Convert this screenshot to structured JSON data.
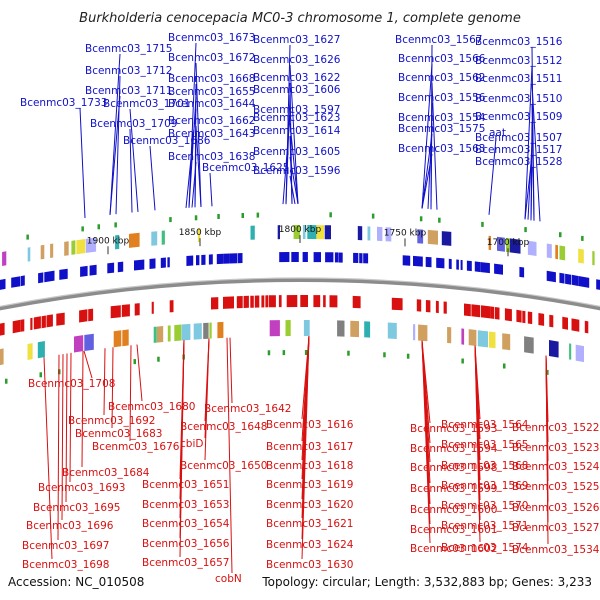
{
  "title": "Burkholderia cenocepacia MC0-3 chromosome 1, complete genome",
  "footer": {
    "accession": "Accession: NC_010508",
    "summary": "Topology: circular; Length: 3,532,883 bp; Genes: 3,233"
  },
  "colors": {
    "forward": "#1010c8",
    "reverse": "#d81010",
    "backbone": "#8c8c8c",
    "gc": "#2a9d2a"
  },
  "ticks": [
    "1900 kbp",
    "1850 kbp",
    "1800 kbp",
    "1750 kbp",
    "1700 kbp"
  ],
  "top_labels": [
    "Bcenmc03_1715",
    "Bcenmc03_1673",
    "Bcenmc03_1627",
    "Bcenmc03_1567",
    "Bcenmc03_1516",
    "Bcenmc03_1672",
    "Bcenmc03_1626",
    "Bcenmc03_1566",
    "Bcenmc03_1512",
    "Bcenmc03_1712",
    "Bcenmc03_1668",
    "Bcenmc03_1622",
    "Bcenmc03_1562",
    "Bcenmc03_1511",
    "Bcenmc03_1711",
    "Bcenmc03_1655",
    "Bcenmc03_1606",
    "Bcenmc03_1556",
    "Bcenmc03_1510",
    "Bcenmc03_1733",
    "Bcenmc03_1701",
    "Bcenmc03_1644",
    "Bcenmc03_1597",
    "Bcenmc03_1554",
    "Bcenmc03_1509",
    "Bcenmc03_1709",
    "Bcenmc03_1662",
    "Bcenmc03_1623",
    "Bcenmc03_1575",
    "aat",
    "Bcenmc03_1507",
    "Bcenmc03_1643",
    "Bcenmc03_1614",
    "Bcenmc03_1686",
    "Bcenmc03_1605",
    "Bcenmc03_1563",
    "Bcenmc03_1517",
    "Bcenmc03_1638",
    "Bcenmc03_1528",
    "Bcenmc03_1625",
    "Bcenmc03_1596"
  ],
  "bottom_labels": [
    "Bcenmc03_1708",
    "Bcenmc03_1680",
    "Bcenmc03_1642",
    "Bcenmc03_1692",
    "Bcenmc03_1648",
    "Bcenmc03_1616",
    "Bcenmc03_1593",
    "Bcenmc03_1564",
    "Bcenmc03_1522",
    "Bcenmc03_1683",
    "cbiD",
    "Bcenmc03_1617",
    "Bcenmc03_1594",
    "Bcenmc03_1565",
    "Bcenmc03_1523",
    "Bcenmc03_1676",
    "Bcenmc03_1650",
    "Bcenmc03_1618",
    "Bcenmc03_1598",
    "Bcenmc03_1568",
    "Bcenmc03_1524",
    "Bcenmc03_1684",
    "Bcenmc03_1651",
    "Bcenmc03_1619",
    "Bcenmc03_1599",
    "Bcenmc03_1569",
    "Bcenmc03_1525",
    "Bcenmc03_1693",
    "Bcenmc03_1653",
    "Bcenmc03_1620",
    "Bcenmc03_1600",
    "Bcenmc03_1570",
    "Bcenmc03_1526",
    "Bcenmc03_1695",
    "Bcenmc03_1654",
    "Bcenmc03_1621",
    "Bcenmc03_1601",
    "Bcenmc03_1571",
    "Bcenmc03_1527",
    "Bcenmc03_1696",
    "Bcenmc03_1656",
    "Bcenmc03_1624",
    "Bcenmc03_1602",
    "Bcenmc03_1574",
    "Bcenmc03_1534",
    "Bcenmc03_1697",
    "Bcenmc03_1657",
    "Bcenmc03_1630",
    "Bcenmc03_1698",
    "cobN"
  ]
}
